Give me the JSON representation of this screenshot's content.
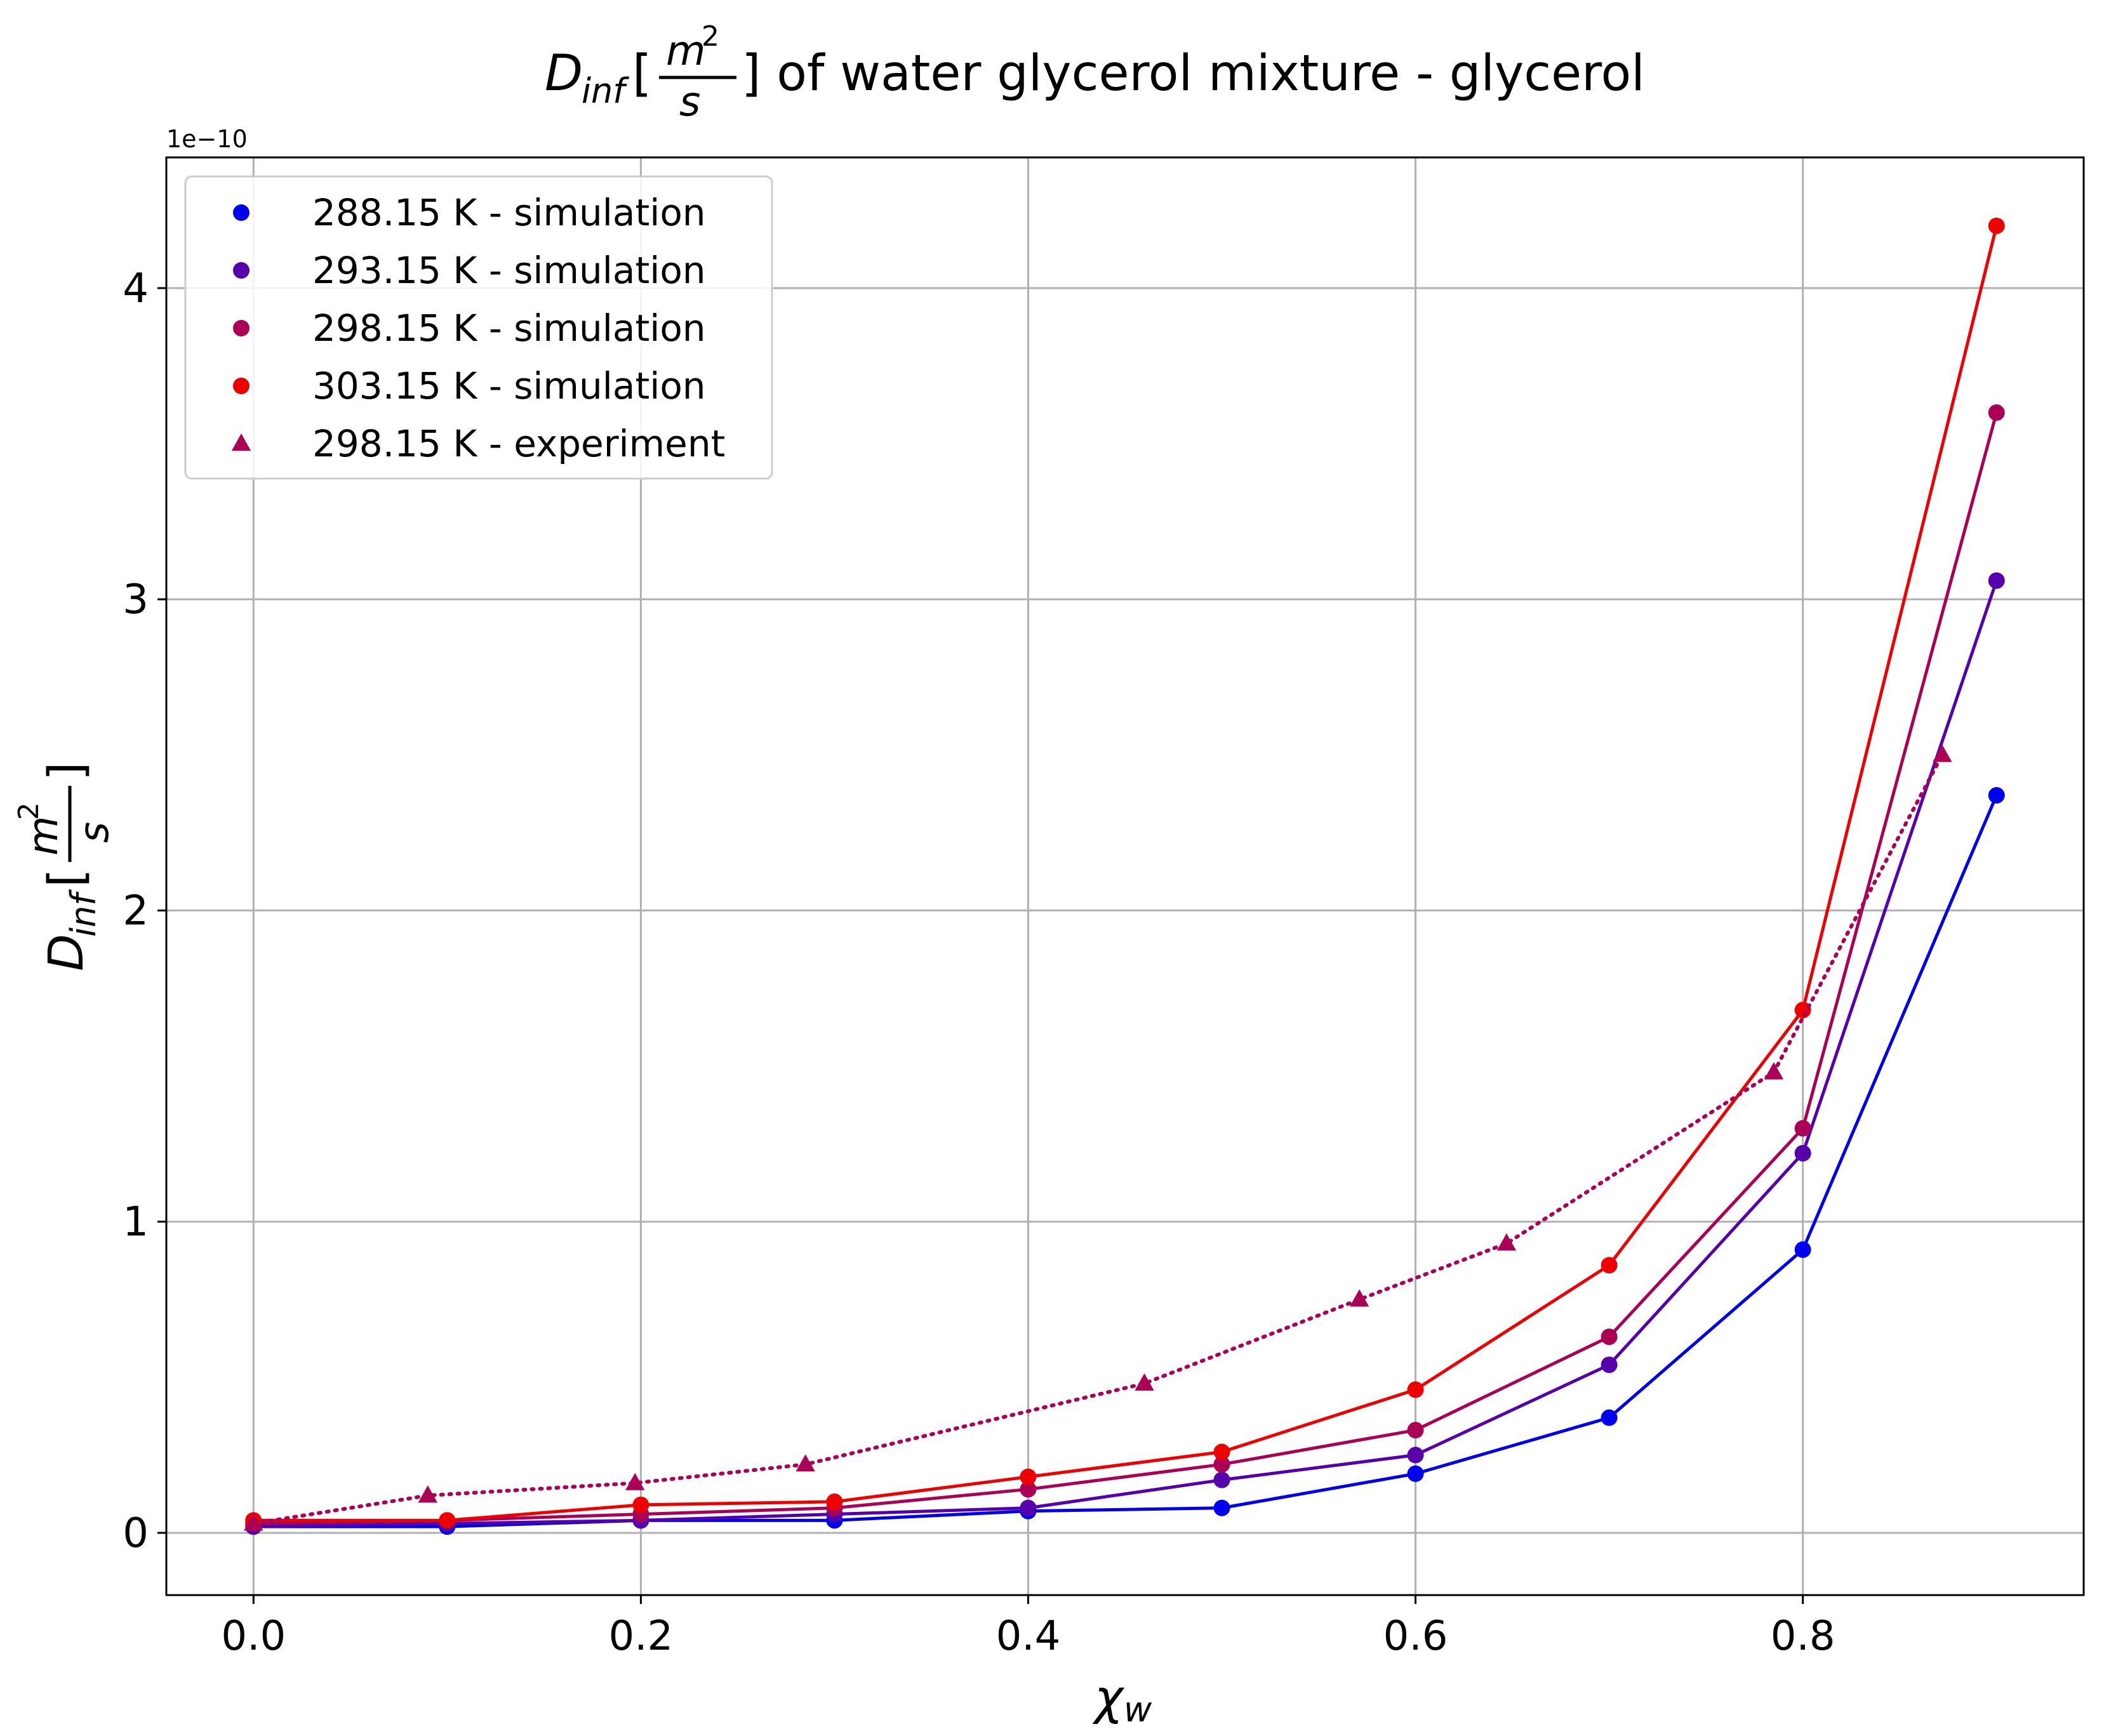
{
  "chart_data": {
    "type": "line",
    "title": {
      "main": "D",
      "sub": "inf",
      "unit_num": "m",
      "unit_exp": "2",
      "unit_den": "s",
      "rest": "] of water glycerol mixture - glycerol"
    },
    "xlabel": {
      "main": "χ",
      "sub": "w"
    },
    "ylabel": {
      "main": "D",
      "sub": "inf",
      "unit_num": "m",
      "unit_exp": "2",
      "unit_den": "s"
    },
    "y_offset_text": "1e−10",
    "xlim": [
      -0.045,
      0.945
    ],
    "ylim": [
      -0.2,
      4.42
    ],
    "x_ticks": [
      0.0,
      0.2,
      0.4,
      0.6,
      0.8
    ],
    "x_tick_labels": [
      "0.0",
      "0.2",
      "0.4",
      "0.6",
      "0.8"
    ],
    "y_ticks": [
      0,
      1,
      2,
      3,
      4
    ],
    "y_tick_labels": [
      "0",
      "1",
      "2",
      "3",
      "4"
    ],
    "grid": true,
    "legend_position": "upper-left",
    "series": [
      {
        "name": "288.15 K - simulation",
        "color": "#0000ee",
        "marker": "circle",
        "line": "solid",
        "x": [
          0.0,
          0.1,
          0.2,
          0.3,
          0.4,
          0.5,
          0.6,
          0.7,
          0.8,
          0.9
        ],
        "y": [
          0.02,
          0.02,
          0.04,
          0.04,
          0.07,
          0.08,
          0.19,
          0.37,
          0.91,
          2.37
        ]
      },
      {
        "name": "293.15 K - simulation",
        "color": "#5500aa",
        "marker": "circle",
        "line": "solid",
        "x": [
          0.0,
          0.1,
          0.2,
          0.3,
          0.4,
          0.5,
          0.6,
          0.7,
          0.8,
          0.9
        ],
        "y": [
          0.02,
          0.03,
          0.04,
          0.06,
          0.08,
          0.17,
          0.25,
          0.54,
          1.22,
          3.06
        ]
      },
      {
        "name": "298.15 K - simulation",
        "color": "#aa0055",
        "marker": "circle",
        "line": "solid",
        "x": [
          0.0,
          0.1,
          0.2,
          0.3,
          0.4,
          0.5,
          0.6,
          0.7,
          0.8,
          0.9
        ],
        "y": [
          0.03,
          0.04,
          0.06,
          0.08,
          0.14,
          0.22,
          0.33,
          0.63,
          1.3,
          3.6
        ]
      },
      {
        "name": "303.15 K - simulation",
        "color": "#ee0000",
        "marker": "circle",
        "line": "solid",
        "x": [
          0.0,
          0.1,
          0.2,
          0.3,
          0.4,
          0.5,
          0.6,
          0.7,
          0.8,
          0.9
        ],
        "y": [
          0.04,
          0.04,
          0.09,
          0.1,
          0.18,
          0.26,
          0.46,
          0.86,
          1.68,
          4.2
        ]
      },
      {
        "name": "298.15 K - experiment",
        "color": "#aa0055",
        "marker": "triangle",
        "line": "dotted",
        "x": [
          0.0,
          0.09,
          0.197,
          0.285,
          0.46,
          0.571,
          0.647,
          0.785,
          0.872
        ],
        "y": [
          0.03,
          0.12,
          0.16,
          0.22,
          0.48,
          0.75,
          0.93,
          1.48,
          2.5
        ]
      }
    ]
  }
}
